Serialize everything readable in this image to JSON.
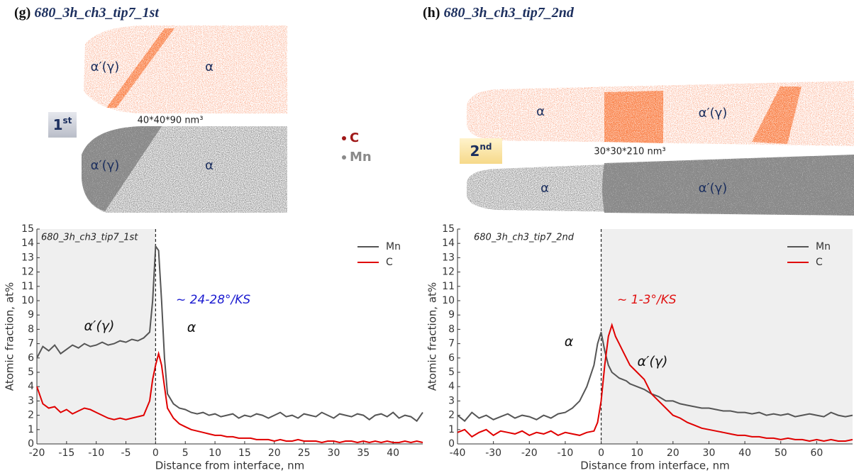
{
  "panels": [
    {
      "label": "(g)",
      "title": "680_3h_ch3_tip7_1st",
      "badge": [
        "1",
        "st"
      ],
      "volume": "40*40*90 nm³",
      "map_labels": [
        "α′(γ)",
        "α",
        "α′(γ)",
        "α"
      ]
    },
    {
      "label": "(h)",
      "title": "680_3h_ch3_tip7_2nd",
      "badge": [
        "2",
        "nd"
      ],
      "volume": "30*30*210 nm³",
      "map_labels": [
        "α",
        "α′(γ)",
        "α",
        "α′(γ)"
      ]
    }
  ],
  "elements": [
    {
      "name": "C",
      "color": "#a01818"
    },
    {
      "name": "Mn",
      "color": "#8a8a8a"
    }
  ],
  "chart_data": [
    {
      "type": "line",
      "x_label": "Distance from interface, nm",
      "y_label": "Atomic fraction, at%",
      "xlim": [
        -20,
        45
      ],
      "ylim": [
        0,
        15
      ],
      "xticks": [
        -20,
        -15,
        -10,
        -5,
        0,
        5,
        10,
        15,
        20,
        25,
        30,
        35,
        40
      ],
      "yticks": [
        0,
        1,
        2,
        3,
        4,
        5,
        6,
        7,
        8,
        9,
        10,
        11,
        12,
        13,
        14,
        15
      ],
      "shade": [
        -20,
        0
      ],
      "interface": 0,
      "legend": "upper right",
      "grid": false,
      "annotations": [
        {
          "text": "680_3h_ch3_tip7_1st",
          "color": "#222222"
        },
        {
          "text": "~ 24-28°/KS",
          "color": "#1a1ad0"
        },
        {
          "text": "α′(γ)",
          "color": "#111111"
        },
        {
          "text": "α",
          "color": "#111111"
        }
      ],
      "x": [
        -20,
        -19,
        -18,
        -17,
        -16,
        -15,
        -14,
        -13,
        -12,
        -11,
        -10,
        -9,
        -8,
        -7,
        -6,
        -5,
        -4,
        -3,
        -2,
        -1,
        -0.5,
        0,
        0.5,
        1,
        1.5,
        2,
        3,
        4,
        5,
        6,
        7,
        8,
        9,
        10,
        11,
        12,
        13,
        14,
        15,
        16,
        17,
        18,
        19,
        20,
        21,
        22,
        23,
        24,
        25,
        26,
        27,
        28,
        29,
        30,
        31,
        32,
        33,
        34,
        35,
        36,
        37,
        38,
        39,
        40,
        41,
        42,
        43,
        44,
        45
      ],
      "series": [
        {
          "name": "Mn",
          "color": "#555555",
          "values": [
            6.0,
            6.8,
            6.5,
            6.9,
            6.3,
            6.6,
            6.9,
            6.7,
            7.0,
            6.8,
            6.9,
            7.1,
            6.9,
            7.0,
            7.2,
            7.1,
            7.3,
            7.2,
            7.4,
            7.8,
            10.0,
            13.8,
            13.5,
            10.0,
            6.0,
            3.5,
            2.8,
            2.5,
            2.4,
            2.2,
            2.1,
            2.2,
            2.0,
            2.1,
            1.9,
            2.0,
            2.1,
            1.8,
            2.0,
            1.9,
            2.1,
            2.0,
            1.8,
            2.0,
            2.2,
            1.9,
            2.0,
            1.8,
            2.1,
            2.0,
            1.9,
            2.2,
            2.0,
            1.8,
            2.1,
            2.0,
            1.9,
            2.1,
            2.0,
            1.7,
            2.0,
            2.1,
            1.9,
            2.2,
            1.8,
            2.0,
            1.9,
            1.6,
            2.2
          ]
        },
        {
          "name": "C",
          "color": "#e00000",
          "values": [
            4.0,
            2.8,
            2.5,
            2.6,
            2.2,
            2.4,
            2.1,
            2.3,
            2.5,
            2.4,
            2.2,
            2.0,
            1.8,
            1.7,
            1.8,
            1.7,
            1.8,
            1.9,
            2.0,
            3.0,
            4.5,
            5.5,
            6.3,
            5.5,
            4.0,
            2.5,
            1.8,
            1.4,
            1.2,
            1.0,
            0.9,
            0.8,
            0.7,
            0.6,
            0.6,
            0.5,
            0.5,
            0.4,
            0.4,
            0.4,
            0.3,
            0.3,
            0.3,
            0.2,
            0.3,
            0.2,
            0.2,
            0.3,
            0.2,
            0.2,
            0.2,
            0.1,
            0.2,
            0.2,
            0.1,
            0.2,
            0.2,
            0.1,
            0.2,
            0.1,
            0.2,
            0.1,
            0.2,
            0.1,
            0.1,
            0.2,
            0.1,
            0.2,
            0.1
          ]
        }
      ]
    },
    {
      "type": "line",
      "x_label": "Distance from interface, nm",
      "y_label": "Atomic fraction, at%",
      "xlim": [
        -40,
        70
      ],
      "ylim": [
        0,
        15
      ],
      "xticks": [
        -40,
        -30,
        -20,
        -10,
        0,
        10,
        20,
        30,
        40,
        50,
        60
      ],
      "yticks": [
        0,
        1,
        2,
        3,
        4,
        5,
        6,
        7,
        8,
        9,
        10,
        11,
        12,
        13,
        14,
        15
      ],
      "shade": [
        0,
        70
      ],
      "interface": 0,
      "legend": "upper right",
      "grid": false,
      "annotations": [
        {
          "text": "680_3h_ch3_tip7_2nd",
          "color": "#222222"
        },
        {
          "text": "~ 1-3°/KS",
          "color": "#e01010"
        },
        {
          "text": "α",
          "color": "#111111"
        },
        {
          "text": "α′(γ)",
          "color": "#111111"
        }
      ],
      "x": [
        -40,
        -38,
        -36,
        -34,
        -32,
        -30,
        -28,
        -26,
        -24,
        -22,
        -20,
        -18,
        -16,
        -14,
        -12,
        -10,
        -8,
        -6,
        -4,
        -2,
        -1,
        0,
        1,
        2,
        3,
        4,
        5,
        6,
        7,
        8,
        10,
        12,
        14,
        16,
        18,
        20,
        22,
        24,
        26,
        28,
        30,
        32,
        34,
        36,
        38,
        40,
        42,
        44,
        46,
        48,
        50,
        52,
        54,
        56,
        58,
        60,
        62,
        64,
        66,
        68,
        70
      ],
      "series": [
        {
          "name": "Mn",
          "color": "#555555",
          "values": [
            2.0,
            1.6,
            2.2,
            1.8,
            2.0,
            1.7,
            1.9,
            2.1,
            1.8,
            2.0,
            1.9,
            1.7,
            2.0,
            1.8,
            2.1,
            2.2,
            2.5,
            3.0,
            4.0,
            5.5,
            7.0,
            7.8,
            6.5,
            5.5,
            5.0,
            4.8,
            4.6,
            4.5,
            4.4,
            4.2,
            4.0,
            3.8,
            3.5,
            3.3,
            3.0,
            3.0,
            2.8,
            2.7,
            2.6,
            2.5,
            2.5,
            2.4,
            2.3,
            2.3,
            2.2,
            2.2,
            2.1,
            2.2,
            2.0,
            2.1,
            2.0,
            2.1,
            1.9,
            2.0,
            2.1,
            2.0,
            1.9,
            2.2,
            2.0,
            1.9,
            2.0
          ]
        },
        {
          "name": "C",
          "color": "#e00000",
          "values": [
            0.8,
            1.0,
            0.5,
            0.8,
            1.0,
            0.6,
            0.9,
            0.8,
            0.7,
            0.9,
            0.6,
            0.8,
            0.7,
            0.9,
            0.6,
            0.8,
            0.7,
            0.6,
            0.8,
            0.9,
            1.5,
            3.0,
            5.5,
            7.5,
            8.3,
            7.5,
            7.0,
            6.5,
            6.0,
            5.5,
            5.0,
            4.5,
            3.5,
            3.0,
            2.5,
            2.0,
            1.8,
            1.5,
            1.3,
            1.1,
            1.0,
            0.9,
            0.8,
            0.7,
            0.6,
            0.6,
            0.5,
            0.5,
            0.4,
            0.4,
            0.3,
            0.4,
            0.3,
            0.3,
            0.2,
            0.3,
            0.2,
            0.3,
            0.2,
            0.2,
            0.3
          ]
        }
      ]
    }
  ]
}
